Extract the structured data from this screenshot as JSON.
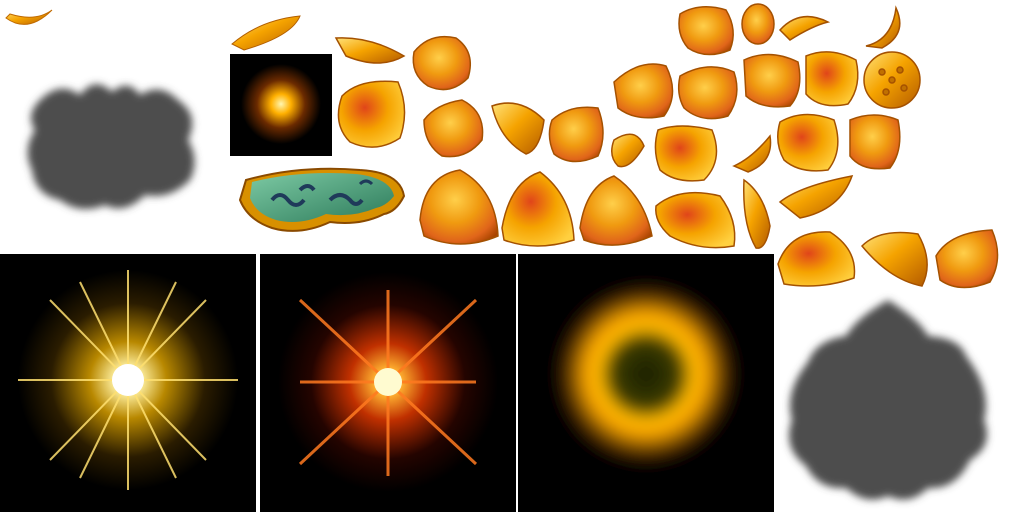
{
  "atlas": {
    "colors": {
      "gold_light": "#ffe27a",
      "gold_mid": "#f5a300",
      "gold_dark": "#b35a00",
      "red_orange": "#e0451a",
      "shadow_gray": "#4d4d4d",
      "panel_black": "#000000",
      "tray_green": "#3f9e7a",
      "tray_swirl": "#1f3a5a"
    },
    "sprites": [
      {
        "name": "small-petal-curl-icon"
      },
      {
        "name": "flower-shadow-top-left-icon"
      },
      {
        "name": "petal-thin-icon"
      },
      {
        "name": "glow-dot-icon"
      },
      {
        "name": "lotus-tray-icon"
      },
      {
        "name": "starburst-gold-icon"
      },
      {
        "name": "starburst-red-icon"
      },
      {
        "name": "glow-ring-icon"
      },
      {
        "name": "flower-shadow-bottom-right-icon"
      },
      {
        "name": "petal-set-icon"
      },
      {
        "name": "dotted-disc-icon"
      }
    ]
  }
}
